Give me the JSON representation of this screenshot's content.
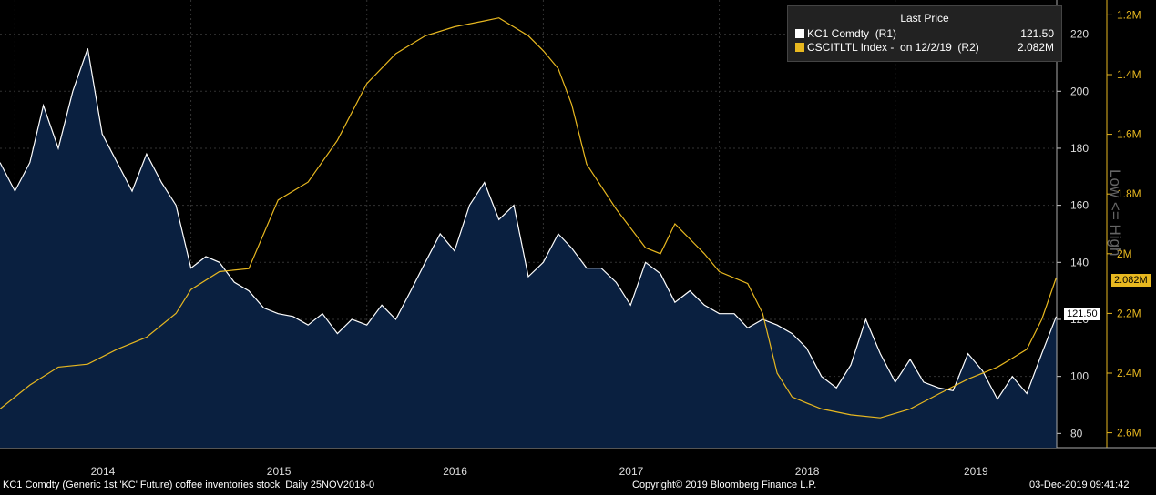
{
  "chart_data": {
    "type": "line",
    "title": "",
    "x_labels": [
      "2014",
      "2015",
      "2016",
      "2017",
      "2018",
      "2019"
    ],
    "left_axis": {
      "name": "KC1 Comdty (R1)",
      "ticks": [
        80,
        100,
        120,
        140,
        160,
        180,
        200,
        220
      ],
      "tick_labels": [
        "80",
        "100",
        "120",
        "140",
        "160",
        "180",
        "200",
        "220"
      ],
      "ylim": [
        75,
        232
      ]
    },
    "right_axis": {
      "name": "CSCITLTL Index (R2)",
      "inverted": true,
      "label": "Low <= High",
      "ticks": [
        1.2,
        1.4,
        1.6,
        1.8,
        2.0,
        2.2,
        2.4,
        2.6
      ],
      "tick_labels": [
        "1.2M",
        "1.4M",
        "1.6M",
        "1.8M",
        "2M",
        "2.2M",
        "2.4M",
        "2.6M"
      ],
      "ylim": [
        1.15,
        2.65
      ]
    },
    "series": [
      {
        "name": "KC1 Comdty (R1)",
        "color": "#ffffff",
        "fill": "#0a2040",
        "axis": "left",
        "x": [
          "2013-12-01",
          "2014-01-01",
          "2014-02-01",
          "2014-03-01",
          "2014-04-01",
          "2014-05-01",
          "2014-06-01",
          "2014-07-01",
          "2014-08-01",
          "2014-09-01",
          "2014-10-01",
          "2014-11-01",
          "2014-12-01",
          "2015-01-01",
          "2015-02-01",
          "2015-03-01",
          "2015-04-01",
          "2015-05-01",
          "2015-06-01",
          "2015-07-01",
          "2015-08-01",
          "2015-09-01",
          "2015-10-01",
          "2015-11-01",
          "2015-12-01",
          "2016-01-01",
          "2016-02-01",
          "2016-03-01",
          "2016-04-01",
          "2016-05-01",
          "2016-06-01",
          "2016-07-01",
          "2016-08-01",
          "2016-09-01",
          "2016-10-01",
          "2016-11-01",
          "2016-12-01",
          "2017-01-01",
          "2017-02-01",
          "2017-03-01",
          "2017-04-01",
          "2017-05-01",
          "2017-06-01",
          "2017-07-01",
          "2017-08-01",
          "2017-09-01",
          "2017-10-01",
          "2017-11-01",
          "2017-12-01",
          "2018-01-01",
          "2018-02-01",
          "2018-03-01",
          "2018-04-01",
          "2018-05-01",
          "2018-06-01",
          "2018-07-01",
          "2018-08-01",
          "2018-09-01",
          "2018-10-01",
          "2018-11-01",
          "2018-12-01",
          "2019-01-01",
          "2019-02-01",
          "2019-03-01",
          "2019-04-01",
          "2019-05-01",
          "2019-06-01",
          "2019-07-01",
          "2019-08-01",
          "2019-09-01",
          "2019-10-01",
          "2019-11-01",
          "2019-12-01"
        ],
        "values": [
          175,
          165,
          175,
          195,
          180,
          200,
          215,
          185,
          175,
          165,
          178,
          168,
          160,
          138,
          142,
          140,
          133,
          130,
          124,
          122,
          121,
          118,
          122,
          115,
          120,
          118,
          125,
          120,
          130,
          140,
          150,
          144,
          160,
          168,
          155,
          160,
          135,
          140,
          150,
          145,
          138,
          138,
          133,
          125,
          140,
          136,
          126,
          130,
          125,
          122,
          122,
          117,
          120,
          118,
          115,
          110,
          100,
          96,
          104,
          120,
          108,
          98,
          106,
          98,
          96,
          95,
          108,
          102,
          92,
          100,
          94,
          108,
          121
        ]
      },
      {
        "name": "CSCITLTL Index - on 12/2/19 (R2)",
        "color": "#e8b820",
        "axis": "right",
        "x": [
          "2013-12-01",
          "2014-02-01",
          "2014-04-01",
          "2014-06-01",
          "2014-08-01",
          "2014-10-01",
          "2014-12-01",
          "2015-01-01",
          "2015-03-01",
          "2015-05-01",
          "2015-07-01",
          "2015-09-01",
          "2015-11-01",
          "2016-01-01",
          "2016-03-01",
          "2016-05-01",
          "2016-07-01",
          "2016-09-01",
          "2016-10-01",
          "2016-12-01",
          "2017-01-01",
          "2017-02-01",
          "2017-03-01",
          "2017-04-01",
          "2017-06-01",
          "2017-08-01",
          "2017-09-01",
          "2017-10-01",
          "2017-12-01",
          "2018-01-01",
          "2018-03-01",
          "2018-04-01",
          "2018-05-01",
          "2018-06-01",
          "2018-07-01",
          "2018-08-01",
          "2018-10-01",
          "2018-12-01",
          "2019-02-01",
          "2019-04-01",
          "2019-06-01",
          "2019-08-01",
          "2019-09-01",
          "2019-10-01",
          "2019-11-01",
          "2019-12-01"
        ],
        "values": [
          2.52,
          2.44,
          2.38,
          2.37,
          2.32,
          2.28,
          2.2,
          2.12,
          2.06,
          2.05,
          1.82,
          1.76,
          1.62,
          1.43,
          1.33,
          1.27,
          1.24,
          1.22,
          1.21,
          1.27,
          1.32,
          1.38,
          1.5,
          1.7,
          1.85,
          1.98,
          2.0,
          1.9,
          2.0,
          2.06,
          2.1,
          2.2,
          2.4,
          2.48,
          2.5,
          2.52,
          2.54,
          2.55,
          2.52,
          2.47,
          2.42,
          2.38,
          2.35,
          2.32,
          2.22,
          2.08
        ]
      }
    ],
    "last_values": {
      "left": "121.50",
      "right": "2.082M"
    },
    "grid": true,
    "legend_position": "top-right"
  },
  "legend": {
    "title": "Last Price",
    "rows": [
      {
        "name": "KC1 Comdty  (R1)",
        "value": "121.50",
        "color": "#ffffff"
      },
      {
        "name": "CSCITLTL Index -  on 12/2/19  (R2)",
        "value": "2.082M",
        "color": "#e8b820"
      }
    ]
  },
  "footer": {
    "left": "KC1 Comdty (Generic 1st 'KC' Future) coffee inventories stock  Daily 25NOV2018-0",
    "center": "Copyright© 2019 Bloomberg Finance L.P.",
    "right": "03-Dec-2019 09:41:42"
  }
}
